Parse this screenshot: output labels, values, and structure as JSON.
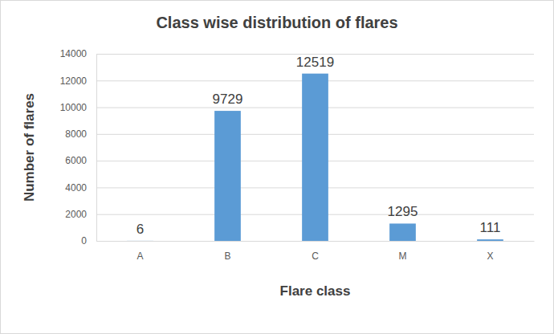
{
  "chart_data": {
    "type": "bar",
    "title": "Class wise distribution of flares",
    "x_label": "Flare class",
    "y_label": "Number of flares",
    "categories": [
      "A",
      "B",
      "C",
      "M",
      "X"
    ],
    "values": [
      6,
      9729,
      12519,
      1295,
      111
    ],
    "color": "#5b9bd5",
    "ylim": [
      0,
      14000
    ],
    "yticks": [
      0,
      2000,
      4000,
      6000,
      8000,
      10000,
      12000,
      14000
    ],
    "grid": true,
    "data_labels": true
  }
}
